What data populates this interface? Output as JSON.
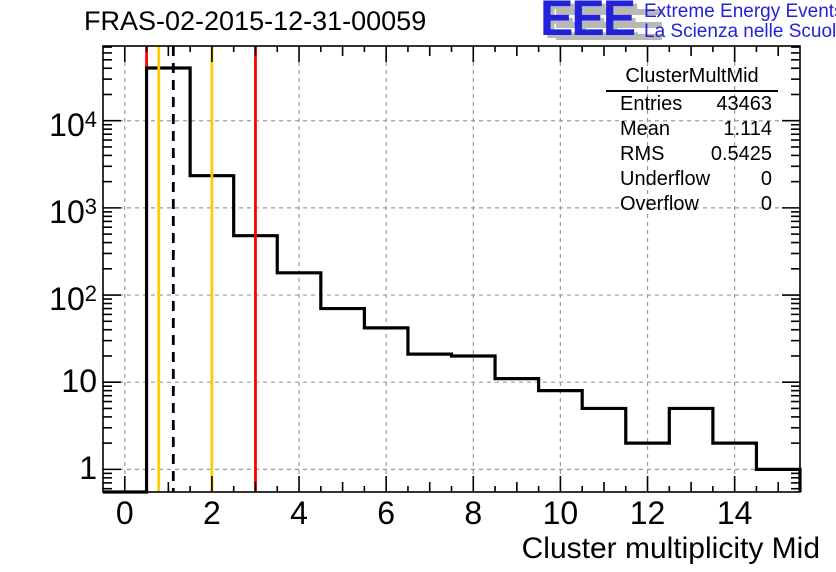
{
  "title": "FRAS-02-2015-12-31-00059",
  "logo": {
    "acronym": "EEE",
    "line1": "Extreme Energy Events",
    "line2": "La Scienza nelle Scuole",
    "color": "#2222dd",
    "shadow_color": "#b8b8b8"
  },
  "stats": {
    "title": "ClusterMultMid",
    "rows": [
      {
        "label": "Entries",
        "value": "43463"
      },
      {
        "label": "Mean",
        "value": "1.114"
      },
      {
        "label": "RMS",
        "value": "0.5425"
      },
      {
        "label": "Underflow",
        "value": "0"
      },
      {
        "label": "Overflow",
        "value": "0"
      }
    ]
  },
  "chart_data": {
    "type": "bar",
    "title": "FRAS-02-2015-12-31-00059",
    "xlabel": "Cluster multiplicity Mid",
    "ylabel": "",
    "y_scale": "log",
    "grid": true,
    "x_range": [
      -0.5,
      15.5
    ],
    "y_range": [
      0.55,
      72000
    ],
    "bin_width": 1,
    "bin_centers": [
      0,
      1,
      2,
      3,
      4,
      5,
      6,
      7,
      8,
      9,
      10,
      11,
      12,
      13,
      14,
      15
    ],
    "counts": [
      0,
      40276,
      2340,
      480,
      180,
      70,
      42,
      21,
      20,
      11,
      8,
      5,
      2,
      5,
      2,
      1
    ],
    "x_major_ticks": [
      0,
      2,
      4,
      6,
      8,
      10,
      12,
      14
    ],
    "x_tick_labels": [
      "0",
      "2",
      "4",
      "6",
      "8",
      "10",
      "12",
      "14"
    ],
    "y_major_ticks": [
      1,
      10,
      100,
      1000,
      10000
    ],
    "y_tick_labels": [
      {
        "base": "1",
        "exp": ""
      },
      {
        "base": "10",
        "exp": ""
      },
      {
        "base": "10",
        "exp": "2"
      },
      {
        "base": "10",
        "exp": "3"
      },
      {
        "base": "10",
        "exp": "4"
      }
    ],
    "marker_lines": [
      {
        "x": 0.5,
        "color": "#ff0000",
        "style": "solid",
        "layer": "behind-histogram"
      },
      {
        "x": 0.78,
        "color": "#ffcc00",
        "style": "solid",
        "layer": "front"
      },
      {
        "x": 1.114,
        "color": "#000000",
        "style": "dashed",
        "layer": "front"
      },
      {
        "x": 2.0,
        "color": "#ffcc00",
        "style": "solid",
        "layer": "front"
      },
      {
        "x": 3.0,
        "color": "#ff0000",
        "style": "solid",
        "layer": "front"
      }
    ],
    "histogram_color": "#000000",
    "grid_color": "#9c9c9c"
  }
}
